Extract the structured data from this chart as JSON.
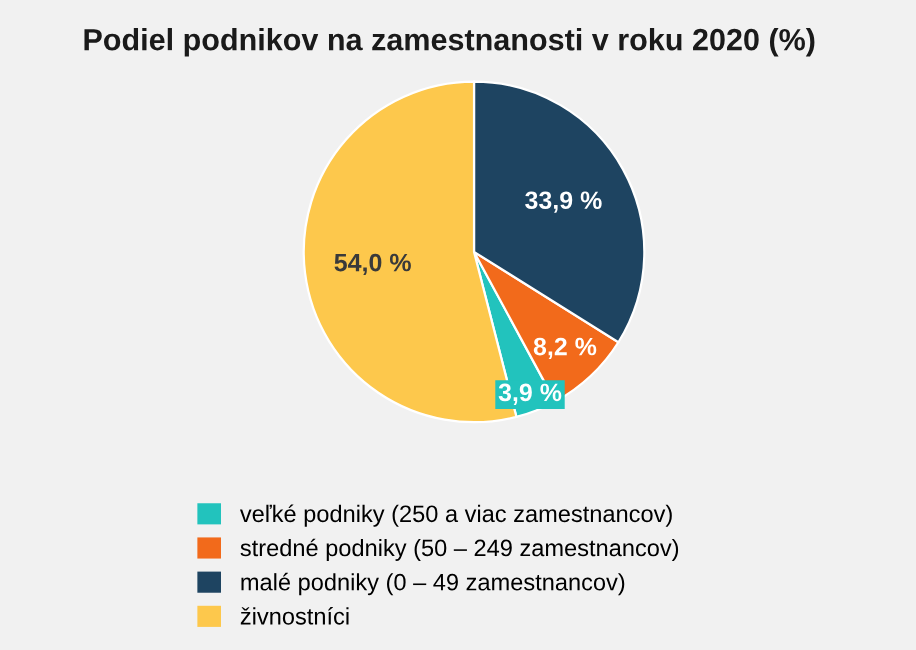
{
  "chart_data": {
    "type": "pie",
    "title": "Podiel podnikov na zamestnanosti v roku 2020 (%)",
    "categories": [
      "veľké podniky (250 a viac zamestnancov)",
      "stredné podniky (50 – 249 zamestnancov)",
      "malé podniky (0 – 49 zamestnancov)",
      "živnostníci"
    ],
    "values": [
      3.9,
      8.2,
      33.9,
      54.0
    ],
    "value_labels": [
      "3,9 %",
      "8,2 %",
      "33,9 %",
      "54,0 %"
    ],
    "colors": [
      "#22c3bd",
      "#f26a1b",
      "#1e4461",
      "#fdc84c"
    ],
    "legend": "bottom left"
  }
}
